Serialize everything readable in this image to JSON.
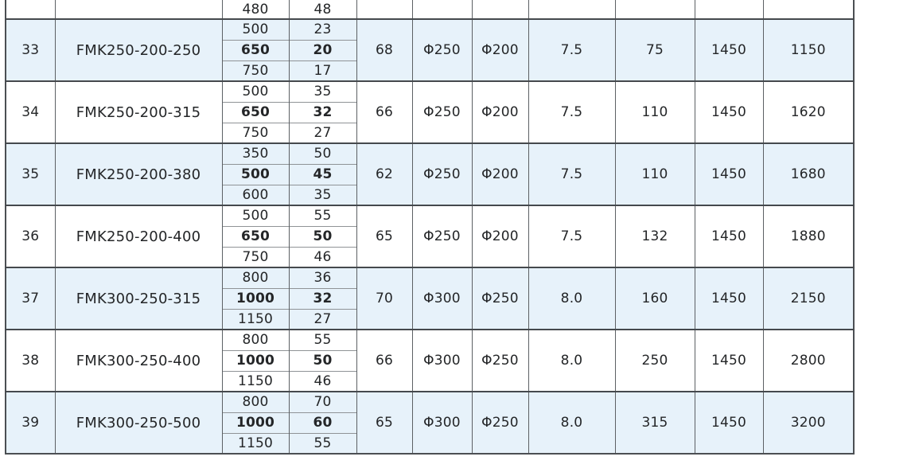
{
  "page": {
    "background": "#ffffff"
  },
  "table": {
    "colors": {
      "shaded_row": "#e7f2fa",
      "grid_line": "#5c6064",
      "strong_line": "#45494d",
      "light_inner_line": "#8f9396",
      "text": "#242628"
    },
    "partial_row": {
      "flow": "480",
      "head": "48"
    },
    "rows": [
      {
        "no": "33",
        "model": "FMK250-200-250",
        "performance": [
          {
            "flow": "500",
            "head": "23",
            "bold": false
          },
          {
            "flow": "650",
            "head": "20",
            "bold": true
          },
          {
            "flow": "750",
            "head": "17",
            "bold": false
          }
        ],
        "efficiency": "68",
        "outlet_dia": "Φ250",
        "inlet_dia": "Φ200",
        "npsh": "7.5",
        "power": "75",
        "speed": "1450",
        "weight": "1150",
        "shaded": true
      },
      {
        "no": "34",
        "model": "FMK250-200-315",
        "performance": [
          {
            "flow": "500",
            "head": "35",
            "bold": false
          },
          {
            "flow": "650",
            "head": "32",
            "bold": true
          },
          {
            "flow": "750",
            "head": "27",
            "bold": false
          }
        ],
        "efficiency": "66",
        "outlet_dia": "Φ250",
        "inlet_dia": "Φ200",
        "npsh": "7.5",
        "power": "110",
        "speed": "1450",
        "weight": "1620",
        "shaded": false
      },
      {
        "no": "35",
        "model": "FMK250-200-380",
        "performance": [
          {
            "flow": "350",
            "head": "50",
            "bold": false
          },
          {
            "flow": "500",
            "head": "45",
            "bold": true
          },
          {
            "flow": "600",
            "head": "35",
            "bold": false
          }
        ],
        "efficiency": "62",
        "outlet_dia": "Φ250",
        "inlet_dia": "Φ200",
        "npsh": "7.5",
        "power": "110",
        "speed": "1450",
        "weight": "1680",
        "shaded": true
      },
      {
        "no": "36",
        "model": "FMK250-200-400",
        "performance": [
          {
            "flow": "500",
            "head": "55",
            "bold": false
          },
          {
            "flow": "650",
            "head": "50",
            "bold": true
          },
          {
            "flow": "750",
            "head": "46",
            "bold": false
          }
        ],
        "efficiency": "65",
        "outlet_dia": "Φ250",
        "inlet_dia": "Φ200",
        "npsh": "7.5",
        "power": "132",
        "speed": "1450",
        "weight": "1880",
        "shaded": false
      },
      {
        "no": "37",
        "model": "FMK300-250-315",
        "performance": [
          {
            "flow": "800",
            "head": "36",
            "bold": false
          },
          {
            "flow": "1000",
            "head": "32",
            "bold": true
          },
          {
            "flow": "1150",
            "head": "27",
            "bold": false
          }
        ],
        "efficiency": "70",
        "outlet_dia": "Φ300",
        "inlet_dia": "Φ250",
        "npsh": "8.0",
        "power": "160",
        "speed": "1450",
        "weight": "2150",
        "shaded": true
      },
      {
        "no": "38",
        "model": "FMK300-250-400",
        "performance": [
          {
            "flow": "800",
            "head": "55",
            "bold": false
          },
          {
            "flow": "1000",
            "head": "50",
            "bold": true
          },
          {
            "flow": "1150",
            "head": "46",
            "bold": false
          }
        ],
        "efficiency": "66",
        "outlet_dia": "Φ300",
        "inlet_dia": "Φ250",
        "npsh": "8.0",
        "power": "250",
        "speed": "1450",
        "weight": "2800",
        "shaded": false
      },
      {
        "no": "39",
        "model": "FMK300-250-500",
        "performance": [
          {
            "flow": "800",
            "head": "70",
            "bold": false
          },
          {
            "flow": "1000",
            "head": "60",
            "bold": true
          },
          {
            "flow": "1150",
            "head": "55",
            "bold": false
          }
        ],
        "efficiency": "65",
        "outlet_dia": "Φ300",
        "inlet_dia": "Φ250",
        "npsh": "8.0",
        "power": "315",
        "speed": "1450",
        "weight": "3200",
        "shaded": true
      }
    ]
  }
}
